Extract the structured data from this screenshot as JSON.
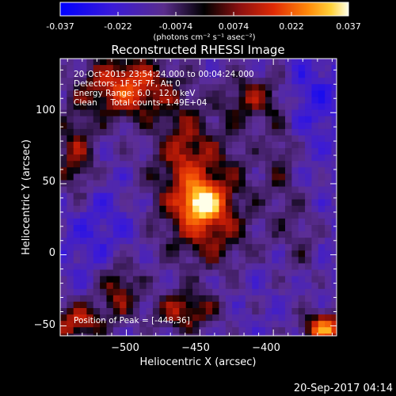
{
  "colorbar": {
    "ticks": [
      "-0.037",
      "-0.022",
      "-0.0074",
      "0.0074",
      "0.022",
      "0.037"
    ],
    "unit_label": "(photons cm⁻² s⁻¹ asec⁻²)"
  },
  "chart_data": {
    "type": "heatmap",
    "title": "Reconstructed RHESSI Image",
    "xlabel": "Heliocentric X (arcsec)",
    "ylabel": "Heliocentric Y (arcsec)",
    "xlim": [
      -545,
      -357
    ],
    "ylim": [
      -57,
      138
    ],
    "xticks": [
      -500,
      -450,
      -400
    ],
    "xtick_labels": [
      "−500",
      "−450",
      "−400"
    ],
    "yticks": [
      -50,
      0,
      50,
      100
    ],
    "ytick_labels": [
      "−50",
      "0",
      "50",
      "100"
    ],
    "zlim": [
      -0.037,
      0.037
    ],
    "colormap": "rhessi-fire (blue-purple-black-red-orange-yellow-white)",
    "peak_xy": [
      -448,
      36
    ],
    "annotations": {
      "time": "20-Oct-2015 23:54:24.000 to 00:04:24.000",
      "detectors": "Detectors: 1F 5F 7F, Att 0",
      "energy": "Energy Range: 6.0 - 12.0 keV",
      "clean": "Clean     Total counts: 1.49E+04",
      "peak": "Position of Peak = [-448,36]"
    }
  },
  "footer": {
    "timestamp": "20-Sep-2017 04:14"
  }
}
